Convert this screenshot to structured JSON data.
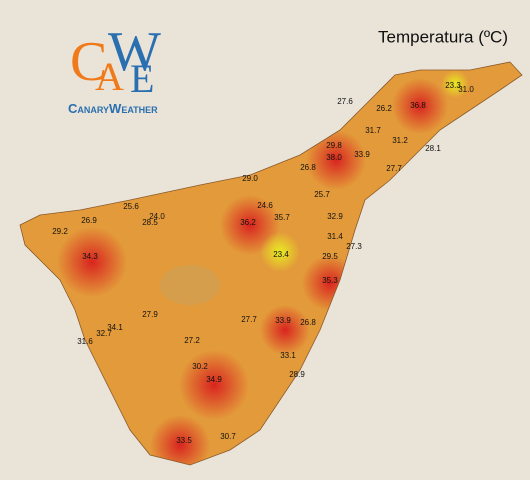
{
  "title": "Temperatura (ºC)",
  "logo": {
    "letters": [
      "C",
      "A",
      "W",
      "E"
    ],
    "name": "CanaryWeather"
  },
  "stations": [
    "36.8",
    "23.3",
    "31.0",
    "27.6",
    "26.2",
    "31.7",
    "31.2",
    "28.1",
    "29.8",
    "38.0",
    "33.9",
    "27.7",
    "26.8",
    "29.0",
    "25.7",
    "25.6",
    "24.0",
    "28.5",
    "26.9",
    "29.2",
    "24.6",
    "35.7",
    "36.2",
    "32.9",
    "31.4",
    "27.3",
    "23.4",
    "29.5",
    "34.3",
    "35.3",
    "27.9",
    "34.1",
    "32.7",
    "31.6",
    "27.7",
    "33.9",
    "26.8",
    "27.2",
    "33.1",
    "30.2",
    "34.9",
    "28.9",
    "30.7",
    "33.5"
  ]
}
